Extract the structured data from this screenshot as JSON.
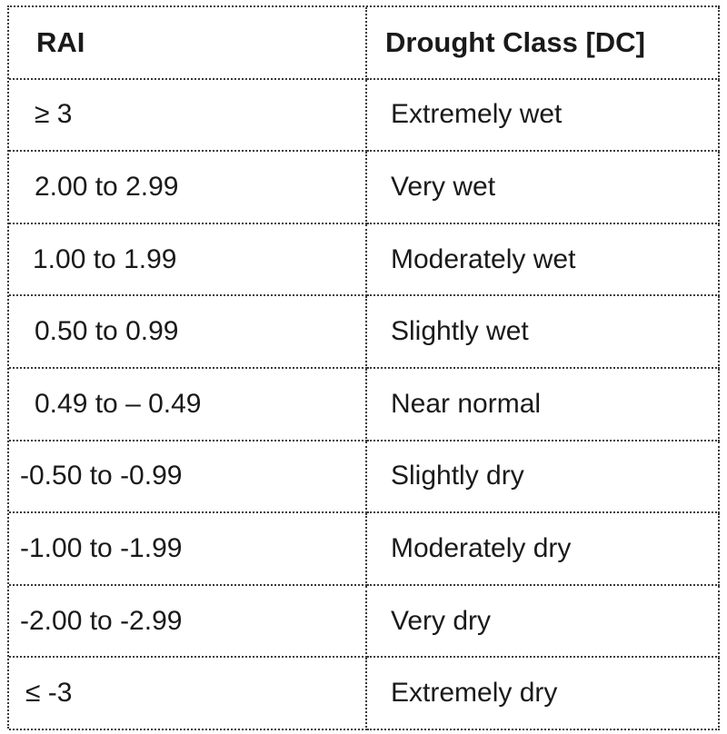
{
  "table": {
    "headers": [
      "RAI",
      "Drought Class [DC]"
    ],
    "rows": [
      {
        "rai": "≥ 3",
        "class": "Extremely wet"
      },
      {
        "rai": "2.00 to 2.99",
        "class": "Very wet"
      },
      {
        "rai": "1.00 to 1.99",
        "class": "Moderately wet"
      },
      {
        "rai": "0.50 to 0.99",
        "class": "Slightly wet"
      },
      {
        "rai": "0.49 to – 0.49",
        "class": "Near normal"
      },
      {
        "rai": "-0.50 to -0.99",
        "class": "Slightly dry"
      },
      {
        "rai": "-1.00 to -1.99",
        "class": "Moderately dry"
      },
      {
        "rai": "-2.00 to -2.99",
        "class": "Very dry"
      },
      {
        "rai": "≤ -3",
        "class": "Extremely dry"
      }
    ]
  }
}
